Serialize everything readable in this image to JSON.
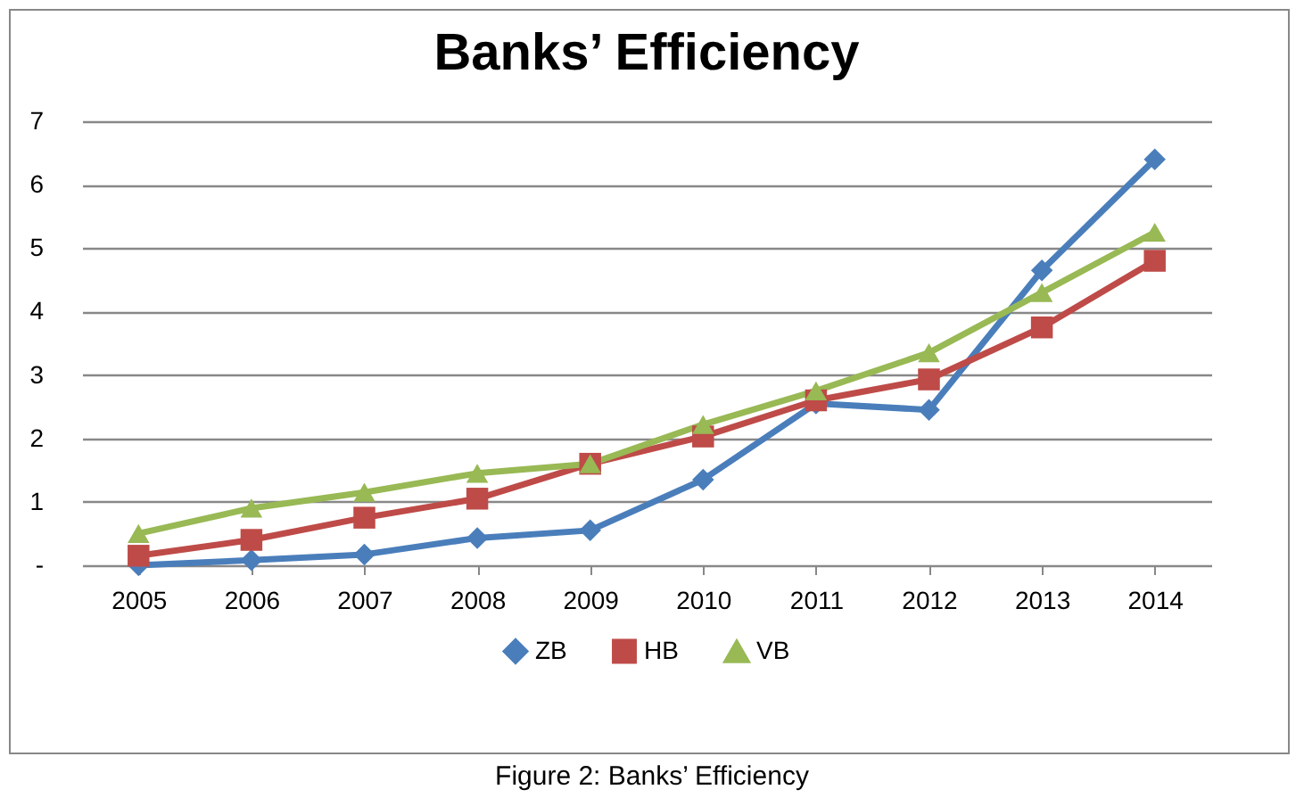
{
  "chart_data": {
    "type": "line",
    "title": "Banks’ Efficiency",
    "categories": [
      "2005",
      "2006",
      "2007",
      "2008",
      "2009",
      "2010",
      "2011",
      "2012",
      "2013",
      "2014"
    ],
    "series": [
      {
        "name": "ZB",
        "color": "#4a7ebb",
        "marker": "diamond",
        "values": [
          0,
          0.08,
          0.17,
          0.43,
          0.55,
          1.35,
          2.55,
          2.45,
          4.65,
          6.4
        ]
      },
      {
        "name": "HB",
        "color": "#be4b48",
        "marker": "square",
        "values": [
          0.15,
          0.4,
          0.75,
          1.05,
          1.6,
          2.03,
          2.6,
          2.93,
          3.75,
          4.8
        ]
      },
      {
        "name": "VB",
        "color": "#98b954",
        "marker": "triangle",
        "values": [
          0.5,
          0.9,
          1.15,
          1.45,
          1.6,
          2.22,
          2.75,
          3.35,
          4.3,
          5.25
        ]
      }
    ],
    "ylim": [
      0,
      7
    ],
    "yticks": [
      {
        "value": 0,
        "label": "-"
      },
      1,
      2,
      3,
      4,
      5,
      6,
      7
    ],
    "grid": "y",
    "legend": "bottom",
    "line_style": "solid",
    "annotations": [
      "Figure 2: Banks’ Efficiency"
    ]
  }
}
